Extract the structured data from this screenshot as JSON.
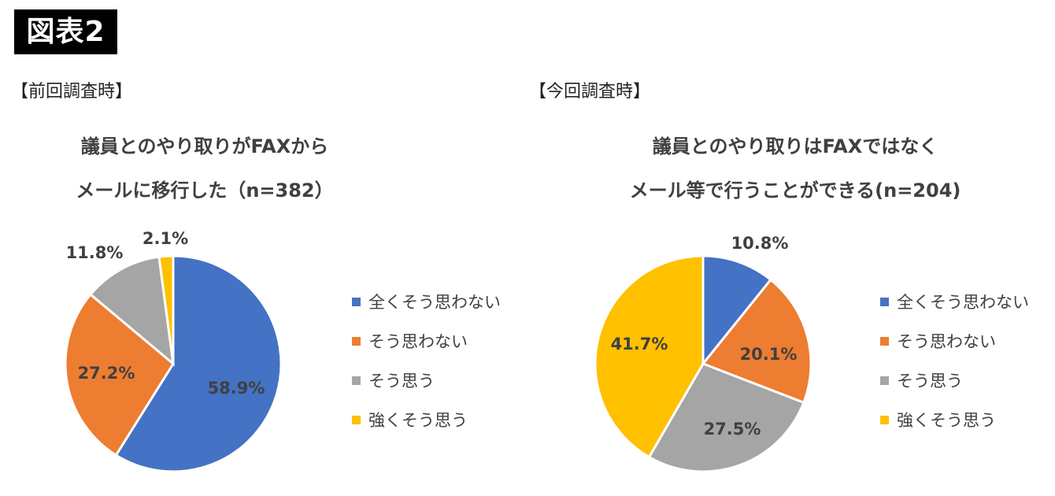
{
  "figure_label": "図表2",
  "colors": {
    "全くそう思わない": "#4472C4",
    "そう思わない": "#ED7D31",
    "そう思う": "#A5A5A5",
    "強くそう思う": "#FFC000"
  },
  "chart_data": [
    {
      "type": "pie",
      "panel_label": "【前回調査時】",
      "title_line1": "議員とのやり取りがFAXから",
      "title_line2": "メールに移行した（n=382）",
      "categories": [
        "全くそう思わない",
        "そう思わない",
        "そう思う",
        "強くそう思う"
      ],
      "values": [
        58.9,
        27.2,
        11.8,
        2.1
      ],
      "labels": [
        "58.9%",
        "27.2%",
        "11.8%",
        "2.1%"
      ],
      "legend": [
        "全くそう思わない",
        "そう思わない",
        "そう思う",
        "強くそう思う"
      ],
      "legend_position": "right"
    },
    {
      "type": "pie",
      "panel_label": "【今回調査時】",
      "title_line1": "議員とのやり取りはFAXではなく",
      "title_line2": "メール等で行うことができる(n=204)",
      "categories": [
        "全くそう思わない",
        "そう思わない",
        "そう思う",
        "強くそう思う"
      ],
      "values": [
        10.8,
        20.1,
        27.5,
        41.7
      ],
      "labels": [
        "10.8%",
        "20.1%",
        "27.5%",
        "41.7%"
      ],
      "legend": [
        "全くそう思わない",
        "そう思わない",
        "そう思う",
        "強くそう思う"
      ],
      "legend_position": "right"
    }
  ]
}
